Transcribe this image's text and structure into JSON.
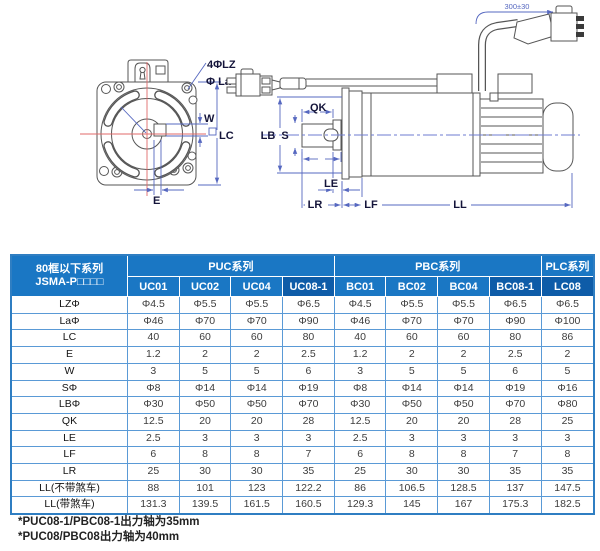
{
  "drawing": {
    "labels": {
      "holes": "4ΦLZ",
      "pilot": "Φ La",
      "w": "W",
      "lc": "LC",
      "e": "E",
      "qk": "QK",
      "s": "S",
      "lb": "LB",
      "le": "LE",
      "lr": "LR",
      "lf": "LF",
      "ll": "LL",
      "cable_length": "300±30"
    }
  },
  "table": {
    "corner": {
      "line1": "80框以下系列",
      "line2": "JSMA-P□□□□"
    },
    "groups": [
      {
        "label": "PUC系列",
        "span": 4
      },
      {
        "label": "PBC系列",
        "span": 4
      },
      {
        "label": "PLC系列",
        "span": 1
      }
    ],
    "columns": [
      {
        "id": "UC01",
        "highlight": false
      },
      {
        "id": "UC02",
        "highlight": false
      },
      {
        "id": "UC04",
        "highlight": false
      },
      {
        "id": "UC08-1",
        "highlight": true
      },
      {
        "id": "BC01",
        "highlight": false
      },
      {
        "id": "BC02",
        "highlight": false
      },
      {
        "id": "BC04",
        "highlight": false
      },
      {
        "id": "BC08-1",
        "highlight": true
      },
      {
        "id": "LC08",
        "highlight": true
      }
    ],
    "rows": [
      {
        "label": "LZΦ",
        "values": [
          "Φ4.5",
          "Φ5.5",
          "Φ5.5",
          "Φ6.5",
          "Φ4.5",
          "Φ5.5",
          "Φ5.5",
          "Φ6.5",
          "Φ6.5"
        ]
      },
      {
        "label": "LaΦ",
        "values": [
          "Φ46",
          "Φ70",
          "Φ70",
          "Φ90",
          "Φ46",
          "Φ70",
          "Φ70",
          "Φ90",
          "Φ100"
        ]
      },
      {
        "label": "LC",
        "values": [
          "40",
          "60",
          "60",
          "80",
          "40",
          "60",
          "60",
          "80",
          "86"
        ]
      },
      {
        "label": "E",
        "values": [
          "1.2",
          "2",
          "2",
          "2.5",
          "1.2",
          "2",
          "2",
          "2.5",
          "2"
        ]
      },
      {
        "label": "W",
        "values": [
          "3",
          "5",
          "5",
          "6",
          "3",
          "5",
          "5",
          "6",
          "5"
        ]
      },
      {
        "label": "SΦ",
        "values": [
          "Φ8",
          "Φ14",
          "Φ14",
          "Φ19",
          "Φ8",
          "Φ14",
          "Φ14",
          "Φ19",
          "Φ16"
        ]
      },
      {
        "label": "LBΦ",
        "values": [
          "Φ30",
          "Φ50",
          "Φ50",
          "Φ70",
          "Φ30",
          "Φ50",
          "Φ50",
          "Φ70",
          "Φ80"
        ]
      },
      {
        "label": "QK",
        "values": [
          "12.5",
          "20",
          "20",
          "28",
          "12.5",
          "20",
          "20",
          "28",
          "25"
        ]
      },
      {
        "label": "LE",
        "values": [
          "2.5",
          "3",
          "3",
          "3",
          "2.5",
          "3",
          "3",
          "3",
          "3"
        ]
      },
      {
        "label": "LF",
        "values": [
          "6",
          "8",
          "8",
          "7",
          "6",
          "8",
          "8",
          "7",
          "8"
        ]
      },
      {
        "label": "LR",
        "values": [
          "25",
          "30",
          "30",
          "35",
          "25",
          "30",
          "30",
          "35",
          "35"
        ]
      },
      {
        "label": "LL(不带煞车)",
        "values": [
          "88",
          "101",
          "123",
          "122.2",
          "86",
          "106.5",
          "128.5",
          "137",
          "147.5"
        ]
      },
      {
        "label": "LL(带煞车)",
        "values": [
          "131.3",
          "139.5",
          "161.5",
          "160.5",
          "129.3",
          "145",
          "167",
          "175.3",
          "182.5"
        ]
      }
    ]
  },
  "footnotes": [
    "*PUC08-1/PBC08-1出力轴为35mm",
    "*PUC08/PBC08出力轴为40mm"
  ],
  "colors": {
    "header_blue": "#1a77c4",
    "header_dark": "#0e5ca8",
    "table_border": "#5a9ad6",
    "dimension_blue": "#5668c0",
    "centerline_red": "#e06a6a"
  }
}
